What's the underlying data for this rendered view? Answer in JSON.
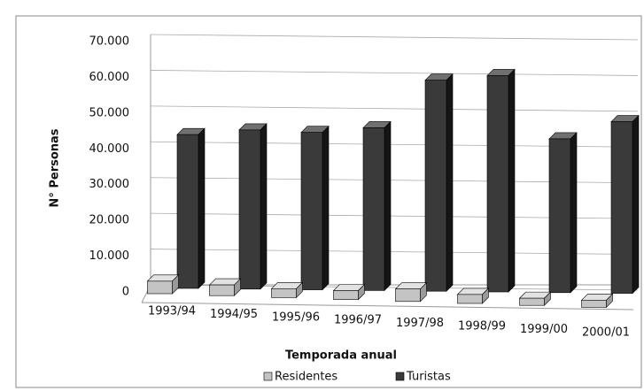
{
  "chart_data": {
    "type": "bar3d",
    "x_label": "Temporada anual",
    "y_label": "N° Personas",
    "categories": [
      "1993/94",
      "1994/95",
      "1995/96",
      "1996/97",
      "1997/98",
      "1998/99",
      "1999/00",
      "2000/01"
    ],
    "series": [
      {
        "name": "Residentes",
        "color": "#c4c4c4",
        "values": [
          3500,
          3000,
          2500,
          2500,
          3500,
          2500,
          2000,
          2000
        ]
      },
      {
        "name": "Turistas",
        "color": "#3a3a3a",
        "values": [
          43000,
          44500,
          44000,
          45500,
          59000,
          60500,
          43000,
          48000
        ]
      }
    ],
    "ylim": [
      0,
      70000
    ],
    "yticks": [
      0,
      {
        "value": 10000,
        "label": "10.000"
      },
      {
        "value": 20000,
        "label": "20.000"
      },
      {
        "value": 30000,
        "label": "30.000"
      },
      {
        "value": 40000,
        "label": "40.000"
      },
      {
        "value": 50000,
        "label": "50.000"
      },
      {
        "value": 60000,
        "label": "60.000"
      },
      {
        "value": 70000,
        "label": "70.000"
      }
    ],
    "grid": true,
    "legend": "bottom"
  }
}
